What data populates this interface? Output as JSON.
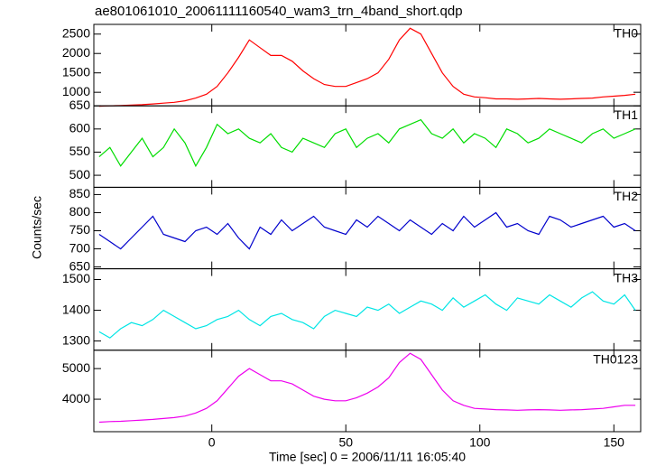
{
  "chart_data": {
    "type": "line",
    "title": "ae801061010_20061111160540_wam3_trn_4band_short.qdp",
    "ylabel": "Counts/sec",
    "xlabel": "Time [sec] 0 = 2006/11/11 16:05:40",
    "xlim": [
      -44,
      160
    ],
    "xticks": [
      0,
      50,
      100,
      150
    ],
    "x": [
      -42,
      -38,
      -34,
      -30,
      -26,
      -22,
      -18,
      -14,
      -10,
      -6,
      -2,
      2,
      6,
      10,
      14,
      18,
      22,
      26,
      30,
      34,
      38,
      42,
      46,
      50,
      54,
      58,
      62,
      66,
      70,
      74,
      78,
      82,
      86,
      90,
      94,
      98,
      102,
      106,
      110,
      114,
      118,
      122,
      126,
      130,
      134,
      138,
      142,
      146,
      150,
      154,
      158
    ],
    "panels": [
      {
        "name": "TH0",
        "color": "#ff0000",
        "ylim": [
          650,
          2750
        ],
        "yticks": [
          650,
          1000,
          1500,
          2000,
          2500
        ],
        "values": [
          640,
          650,
          660,
          670,
          680,
          700,
          720,
          740,
          780,
          850,
          950,
          1150,
          1500,
          1900,
          2350,
          2150,
          1950,
          1950,
          1800,
          1550,
          1350,
          1200,
          1150,
          1150,
          1250,
          1350,
          1500,
          1850,
          2350,
          2650,
          2500,
          2000,
          1500,
          1150,
          950,
          880,
          860,
          830,
          830,
          820,
          830,
          840,
          830,
          820,
          830,
          840,
          850,
          880,
          900,
          920,
          950
        ]
      },
      {
        "name": "TH1",
        "color": "#00dd00",
        "ylim": [
          474,
          650
        ],
        "yticks": [
          500,
          550,
          600
        ],
        "values": [
          540,
          560,
          520,
          550,
          580,
          540,
          560,
          600,
          570,
          520,
          560,
          610,
          590,
          600,
          580,
          570,
          590,
          560,
          550,
          580,
          570,
          560,
          590,
          600,
          560,
          580,
          590,
          570,
          600,
          610,
          620,
          590,
          580,
          600,
          570,
          590,
          580,
          560,
          600,
          590,
          570,
          580,
          600,
          590,
          580,
          570,
          590,
          600,
          580,
          590,
          600
        ]
      },
      {
        "name": "TH2",
        "color": "#0000cc",
        "ylim": [
          645,
          870
        ],
        "yticks": [
          650,
          700,
          750,
          800,
          850
        ],
        "values": [
          740,
          720,
          700,
          730,
          760,
          790,
          740,
          730,
          720,
          750,
          760,
          740,
          770,
          730,
          700,
          760,
          740,
          780,
          750,
          770,
          790,
          760,
          750,
          740,
          780,
          760,
          790,
          770,
          750,
          780,
          760,
          740,
          770,
          750,
          790,
          760,
          780,
          800,
          760,
          770,
          750,
          740,
          790,
          780,
          760,
          770,
          780,
          790,
          760,
          770,
          750
        ]
      },
      {
        "name": "TH3",
        "color": "#00e5e5",
        "ylim": [
          1270,
          1535
        ],
        "yticks": [
          1300,
          1400,
          1500
        ],
        "values": [
          1330,
          1310,
          1340,
          1360,
          1350,
          1370,
          1400,
          1380,
          1360,
          1340,
          1350,
          1370,
          1380,
          1400,
          1370,
          1350,
          1380,
          1390,
          1370,
          1360,
          1340,
          1380,
          1400,
          1390,
          1380,
          1410,
          1400,
          1420,
          1390,
          1410,
          1430,
          1420,
          1400,
          1440,
          1410,
          1430,
          1450,
          1420,
          1400,
          1440,
          1430,
          1420,
          1450,
          1430,
          1410,
          1440,
          1460,
          1430,
          1420,
          1450,
          1400
        ]
      },
      {
        "name": "TH0123",
        "color": "#ee00ee",
        "ylim": [
          2940,
          5600
        ],
        "yticks": [
          4000,
          5000
        ],
        "values": [
          3250,
          3270,
          3280,
          3300,
          3320,
          3340,
          3370,
          3400,
          3450,
          3550,
          3700,
          3950,
          4350,
          4750,
          5000,
          4800,
          4600,
          4600,
          4500,
          4300,
          4100,
          4000,
          3950,
          3950,
          4050,
          4200,
          4400,
          4700,
          5200,
          5500,
          5300,
          4800,
          4300,
          3950,
          3800,
          3700,
          3680,
          3660,
          3650,
          3640,
          3650,
          3660,
          3650,
          3640,
          3650,
          3660,
          3680,
          3700,
          3750,
          3800,
          3800
        ]
      }
    ]
  }
}
